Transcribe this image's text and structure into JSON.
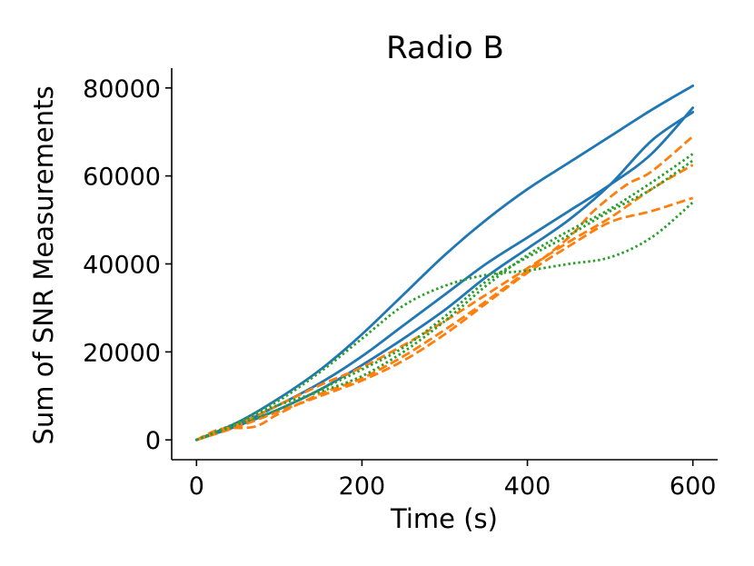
{
  "chart_data": {
    "type": "line",
    "title": "Radio B",
    "xlabel": "Time (s)",
    "ylabel": "Sum of SNR Measurements",
    "xlim": [
      -30,
      630
    ],
    "ylim": [
      -4500,
      84500
    ],
    "xticks": [
      0,
      200,
      400,
      600
    ],
    "yticks": [
      0,
      20000,
      40000,
      60000,
      80000
    ],
    "grid": false,
    "legend": "none",
    "series": [
      {
        "color": "#1f77b4",
        "style": "solid",
        "x": [
          0,
          50,
          100,
          150,
          200,
          250,
          300,
          350,
          400,
          450,
          500,
          550,
          600
        ],
        "y": [
          0,
          4000,
          9500,
          16000,
          24000,
          33000,
          42000,
          50000,
          57000,
          63000,
          69000,
          75000,
          80500
        ]
      },
      {
        "color": "#1f77b4",
        "style": "solid",
        "x": [
          0,
          50,
          100,
          150,
          200,
          250,
          300,
          350,
          400,
          450,
          500,
          550,
          600
        ],
        "y": [
          0,
          3500,
          8000,
          13000,
          19000,
          26000,
          33000,
          40000,
          46000,
          52000,
          58000,
          65000,
          75500
        ]
      },
      {
        "color": "#1f77b4",
        "style": "solid",
        "x": [
          0,
          50,
          100,
          150,
          200,
          250,
          300,
          350,
          400,
          450,
          500,
          550,
          600
        ],
        "y": [
          0,
          3200,
          7000,
          11500,
          17000,
          23000,
          29500,
          37000,
          43500,
          50000,
          58000,
          68000,
          74500
        ]
      },
      {
        "color": "#ff7f0e",
        "style": "dashed",
        "x": [
          0,
          30,
          70,
          100,
          150,
          200,
          250,
          300,
          350,
          400,
          450,
          480,
          520,
          550,
          600
        ],
        "y": [
          0,
          2500,
          3000,
          6000,
          10500,
          14000,
          19000,
          25000,
          31500,
          38500,
          46000,
          52000,
          58000,
          61000,
          69000
        ]
      },
      {
        "color": "#ff7f0e",
        "style": "dashed",
        "x": [
          0,
          50,
          100,
          150,
          200,
          250,
          300,
          350,
          400,
          450,
          500,
          550,
          600
        ],
        "y": [
          0,
          3500,
          8000,
          12500,
          16500,
          21500,
          27000,
          33000,
          39000,
          45000,
          50500,
          57000,
          62500
        ]
      },
      {
        "color": "#ff7f0e",
        "style": "dashed",
        "x": [
          0,
          50,
          100,
          150,
          200,
          250,
          300,
          350,
          400,
          450,
          500,
          550,
          600
        ],
        "y": [
          0,
          3000,
          6500,
          10000,
          13500,
          18000,
          24000,
          31000,
          38000,
          44000,
          49500,
          52000,
          55000
        ]
      },
      {
        "color": "#2ca02c",
        "style": "dotted",
        "x": [
          0,
          50,
          100,
          150,
          200,
          250,
          300,
          350,
          400,
          450,
          500,
          550,
          600
        ],
        "y": [
          0,
          4000,
          9000,
          15500,
          23000,
          30500,
          35000,
          37500,
          38500,
          40000,
          41500,
          46000,
          54000
        ]
      },
      {
        "color": "#2ca02c",
        "style": "dotted",
        "x": [
          0,
          50,
          100,
          150,
          200,
          250,
          300,
          350,
          400,
          450,
          500,
          550,
          600
        ],
        "y": [
          0,
          4000,
          8000,
          11000,
          14500,
          20000,
          27000,
          35000,
          42000,
          47500,
          52500,
          58500,
          65000
        ]
      },
      {
        "color": "#2ca02c",
        "style": "dotted",
        "x": [
          0,
          50,
          100,
          150,
          200,
          250,
          300,
          350,
          400,
          450,
          500,
          550,
          600
        ],
        "y": [
          0,
          3500,
          7000,
          11500,
          16000,
          21000,
          28000,
          36000,
          41500,
          46500,
          52000,
          57000,
          63500
        ]
      }
    ]
  }
}
